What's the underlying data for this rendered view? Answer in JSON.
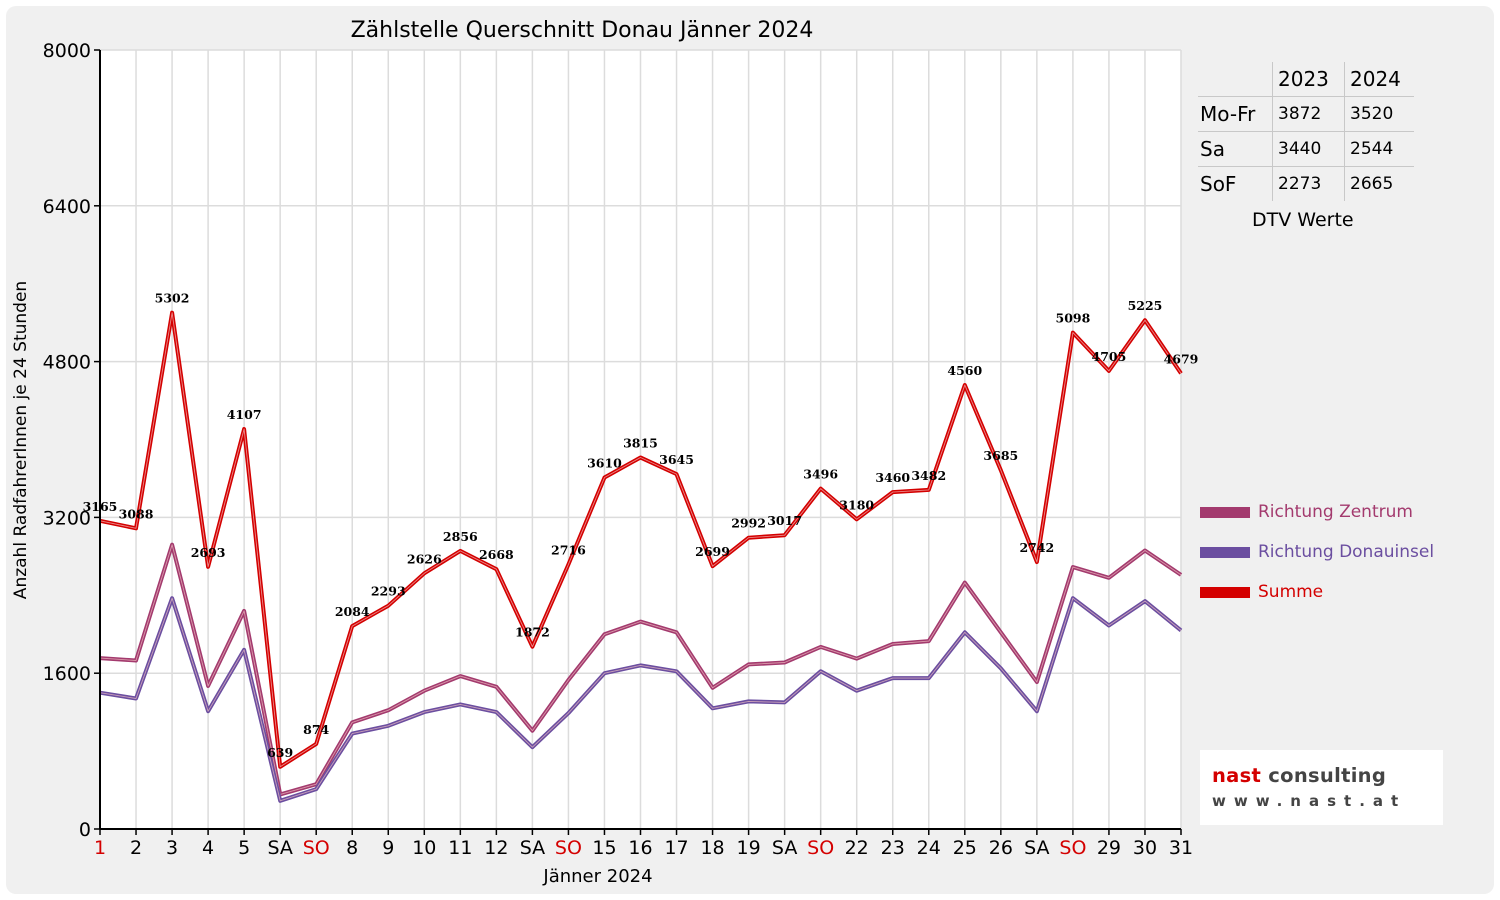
{
  "chart_data": {
    "type": "line",
    "title": "Zählstelle Querschnitt Donau Jänner 2024",
    "xlabel": "Jänner 2024",
    "ylabel": "Anzahl RadfahrerInnen je 24 Stunden",
    "ylim": [
      0,
      8000
    ],
    "yticks": [
      "0",
      "1600",
      "3200",
      "4800",
      "6400",
      "8000"
    ],
    "grid": true,
    "legend_position": "right",
    "categories": [
      "1",
      "2",
      "3",
      "4",
      "5",
      "SA",
      "SO",
      "8",
      "9",
      "10",
      "11",
      "12",
      "SA",
      "SO",
      "15",
      "16",
      "17",
      "18",
      "19",
      "SA",
      "SO",
      "22",
      "23",
      "24",
      "25",
      "26",
      "SA",
      "SO",
      "29",
      "30",
      "31"
    ],
    "category_colors": [
      "#d40000",
      "#000000",
      "#000000",
      "#000000",
      "#000000",
      "#000000",
      "#d40000",
      "#000000",
      "#000000",
      "#000000",
      "#000000",
      "#000000",
      "#000000",
      "#d40000",
      "#000000",
      "#000000",
      "#000000",
      "#000000",
      "#000000",
      "#000000",
      "#d40000",
      "#000000",
      "#000000",
      "#000000",
      "#000000",
      "#000000",
      "#000000",
      "#d40000",
      "#000000",
      "#000000",
      "#000000"
    ],
    "series": [
      {
        "name": "Richtung Zentrum",
        "color": "#a33a6e",
        "values": [
          1755,
          1730,
          2920,
          1470,
          2240,
          355,
          460,
          1095,
          1220,
          1420,
          1570,
          1460,
          1010,
          1530,
          2000,
          2130,
          2020,
          1450,
          1690,
          1710,
          1870,
          1750,
          1900,
          1930,
          2530,
          2020,
          1510,
          2690,
          2580,
          2860,
          2610
        ]
      },
      {
        "name": "Richtung Donauinsel",
        "color": "#6b4ea0",
        "values": [
          1400,
          1340,
          2370,
          1210,
          1840,
          290,
          410,
          980,
          1060,
          1200,
          1280,
          1200,
          840,
          1190,
          1600,
          1680,
          1620,
          1240,
          1310,
          1300,
          1620,
          1420,
          1550,
          1550,
          2020,
          1650,
          1210,
          2370,
          2090,
          2340,
          2040
        ]
      },
      {
        "name": "Summe",
        "color": "#d40000",
        "values": [
          3165,
          3088,
          5302,
          2693,
          4107,
          639,
          874,
          2084,
          2293,
          2626,
          2856,
          2668,
          1872,
          2716,
          3610,
          3815,
          3645,
          2699,
          2992,
          3017,
          3496,
          3180,
          3460,
          3482,
          4560,
          3685,
          2742,
          5098,
          4705,
          5225,
          4679
        ]
      }
    ]
  },
  "dtv_table": {
    "headers": [
      "",
      "2023",
      "2024"
    ],
    "rows": [
      {
        "label": "Mo-Fr",
        "v2023": "3872",
        "v2024": "3520"
      },
      {
        "label": "Sa",
        "v2023": "3440",
        "v2024": "2544"
      },
      {
        "label": "SoF",
        "v2023": "2273",
        "v2024": "2665"
      }
    ],
    "caption": "DTV Werte"
  },
  "logo": {
    "line1a": "nast",
    "line1b": " consulting",
    "line2": "www.nast.at"
  }
}
